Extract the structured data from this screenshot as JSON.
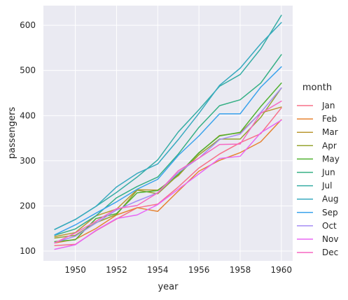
{
  "chart_data": {
    "type": "line",
    "xlabel": "year",
    "ylabel": "passengers",
    "xlim": [
      1948.45,
      1960.55
    ],
    "ylim": [
      78.4,
      643.6
    ],
    "xticks": [
      1950,
      1952,
      1954,
      1956,
      1958,
      1960
    ],
    "yticks": [
      100,
      200,
      300,
      400,
      500,
      600
    ],
    "x": [
      1949,
      1950,
      1951,
      1952,
      1953,
      1954,
      1955,
      1956,
      1957,
      1958,
      1959,
      1960
    ],
    "grid": true,
    "legend": {
      "title": "month",
      "placement": "right"
    },
    "series": [
      {
        "name": "Jan",
        "color": "#f77189",
        "values": [
          112,
          115,
          145,
          171,
          196,
          204,
          242,
          284,
          315,
          340,
          360,
          417
        ]
      },
      {
        "name": "Feb",
        "color": "#e68332",
        "values": [
          118,
          126,
          150,
          180,
          196,
          188,
          233,
          277,
          301,
          318,
          342,
          391
        ]
      },
      {
        "name": "Mar",
        "color": "#bb9832",
        "values": [
          132,
          141,
          178,
          193,
          236,
          235,
          267,
          317,
          356,
          362,
          406,
          419
        ]
      },
      {
        "name": "Apr",
        "color": "#97a431",
        "values": [
          129,
          135,
          163,
          181,
          235,
          227,
          269,
          313,
          348,
          348,
          396,
          461
        ]
      },
      {
        "name": "May",
        "color": "#50b131",
        "values": [
          121,
          125,
          172,
          183,
          229,
          234,
          270,
          318,
          355,
          363,
          420,
          472
        ]
      },
      {
        "name": "Jun",
        "color": "#34af84",
        "values": [
          135,
          149,
          178,
          218,
          243,
          264,
          315,
          374,
          422,
          435,
          472,
          535
        ]
      },
      {
        "name": "Jul",
        "color": "#36ada4",
        "values": [
          148,
          170,
          199,
          230,
          264,
          302,
          364,
          413,
          465,
          491,
          548,
          622
        ]
      },
      {
        "name": "Aug",
        "color": "#38aabf",
        "values": [
          148,
          170,
          199,
          242,
          272,
          293,
          347,
          405,
          467,
          505,
          559,
          606
        ]
      },
      {
        "name": "Sep",
        "color": "#3ba3ec",
        "values": [
          136,
          158,
          184,
          209,
          237,
          259,
          312,
          355,
          404,
          404,
          463,
          508
        ]
      },
      {
        "name": "Oct",
        "color": "#a48cf4",
        "values": [
          119,
          133,
          162,
          191,
          211,
          229,
          274,
          306,
          347,
          359,
          407,
          461
        ]
      },
      {
        "name": "Nov",
        "color": "#e866f4",
        "values": [
          104,
          114,
          146,
          172,
          180,
          203,
          237,
          271,
          305,
          310,
          362,
          390
        ]
      },
      {
        "name": "Dec",
        "color": "#f668c2",
        "values": [
          118,
          140,
          166,
          194,
          201,
          229,
          278,
          306,
          336,
          337,
          405,
          432
        ]
      }
    ]
  }
}
